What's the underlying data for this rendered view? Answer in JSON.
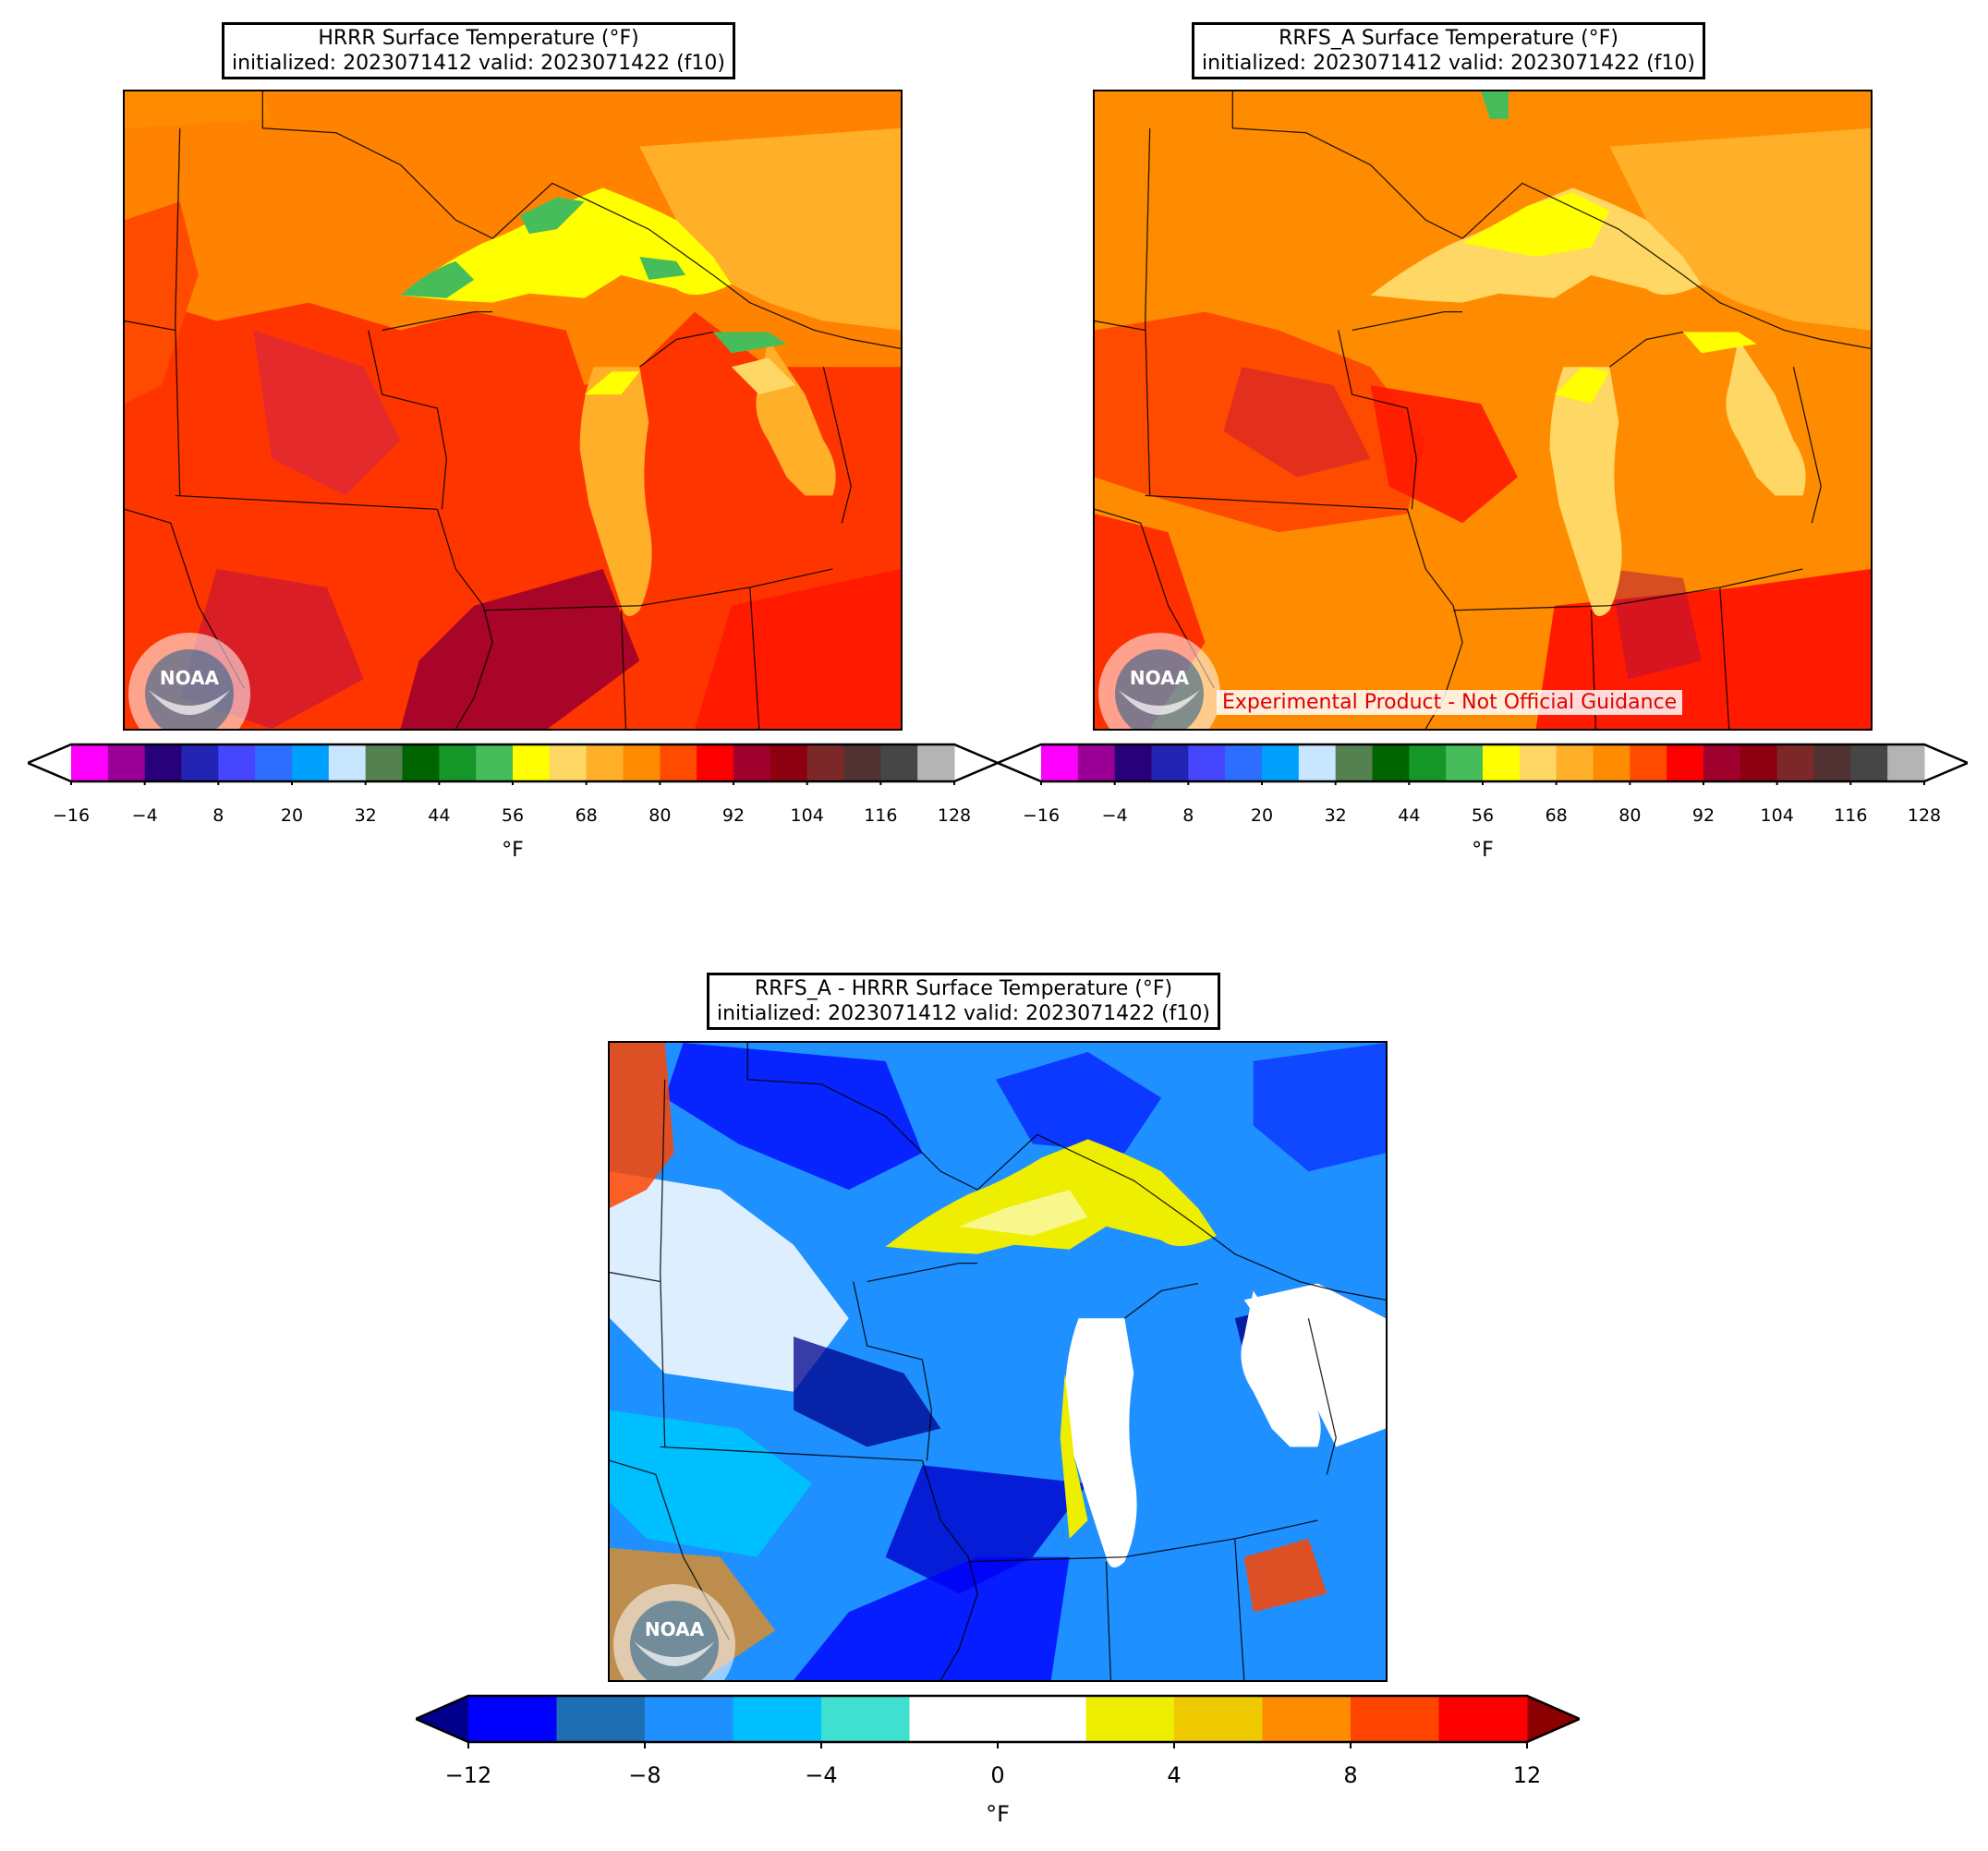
{
  "panels": [
    {
      "id": "hrrr",
      "title_line1": "HRRR Surface Temperature (°F)",
      "title_line2": "initialized: 2023071412 valid: 2023071422 (f10)",
      "colorbar_unit": "°F",
      "tick_labels": [
        "−16",
        "−4",
        "8",
        "20",
        "32",
        "44",
        "56",
        "68",
        "80",
        "92",
        "104",
        "116",
        "128"
      ]
    },
    {
      "id": "rrfs_a",
      "title_line1": "RRFS_A Surface Temperature (°F)",
      "title_line2": "initialized: 2023071412 valid: 2023071422 (f10)",
      "colorbar_unit": "°F",
      "tick_labels": [
        "−16",
        "−4",
        "8",
        "20",
        "32",
        "44",
        "56",
        "68",
        "80",
        "92",
        "104",
        "116",
        "128"
      ],
      "disclaimer": "Experimental Product - Not Official Guidance"
    },
    {
      "id": "difference",
      "title_line1": "RRFS_A - HRRR Surface Temperature (°F)",
      "title_line2": "initialized: 2023071412 valid: 2023071422 (f10)",
      "colorbar_unit": "°F",
      "tick_labels": [
        "−12",
        "−8",
        "−4",
        "0",
        "4",
        "8",
        "12"
      ]
    }
  ],
  "temperature_colorbar": {
    "levels_start": -16,
    "level_step": 6,
    "colors": [
      "#ff00ff",
      "#9b0096",
      "#28007a",
      "#2323b4",
      "#4646ff",
      "#2d6eff",
      "#00a0ff",
      "#c8e6ff",
      "#558050",
      "#006400",
      "#149628",
      "#46bd5a",
      "#ffff00",
      "#ffd764",
      "#ffaf28",
      "#ff8c00",
      "#ff4b00",
      "#ff0000",
      "#a0002d",
      "#8c000f",
      "#7d2828",
      "#503232",
      "#464646",
      "#b4b4b4"
    ],
    "extend_low_color": "#ffffff",
    "extend_high_color": "#ffffff"
  },
  "difference_colorbar": {
    "levels_start": -12,
    "level_step": 2,
    "colors": [
      "#0000ff",
      "#1e6eb4",
      "#1e90ff",
      "#00bfff",
      "#40e0d0",
      "#ffffff",
      "#ffffff",
      "#eeee00",
      "#eec900",
      "#ff8c00",
      "#ff4500",
      "#ff0000"
    ],
    "extend_low_color": "#00008b",
    "extend_high_color": "#8b0000"
  },
  "logo": {
    "text": "NOAA"
  }
}
